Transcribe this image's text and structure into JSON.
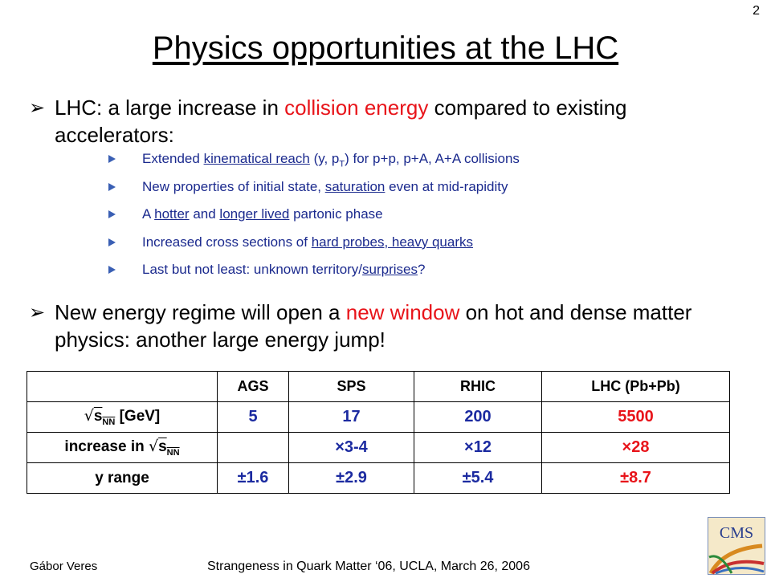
{
  "slide_number": "2",
  "title": "Physics opportunities at the LHC",
  "bullet1": {
    "pre": "LHC: a large increase in ",
    "highlight": "collision energy",
    "post": " compared to existing accelerators:"
  },
  "subbullets": [
    {
      "pre": "Extended ",
      "link": "kinematical reach",
      "post": " (y, p",
      "sub": "T",
      "post2": ") for p+p, p+A, A+A collisions"
    },
    {
      "pre": "New properties of initial state, ",
      "link": "saturation",
      "post": " even at mid-rapidity"
    },
    {
      "pre": "A ",
      "link": "hotter",
      "mid": " and ",
      "link2": "longer lived",
      "post": " partonic phase"
    },
    {
      "pre": "Increased cross sections of ",
      "link": "hard probes, heavy quarks",
      "post": ""
    },
    {
      "pre": "Last but not least: unknown territory/",
      "link": "surprises",
      "post": "?"
    }
  ],
  "bullet2": {
    "pre": "New energy regime will open a ",
    "highlight": "new window",
    "post": " on hot and dense matter physics: another large energy jump!"
  },
  "table": {
    "headers": [
      "",
      "AGS",
      "SPS",
      "RHIC",
      "LHC (Pb+Pb)"
    ],
    "row1_label": "s",
    "row1_label_sub": "NN",
    "row1_label_unit": " [GeV]",
    "row1": [
      "5",
      "17",
      "200",
      "5500"
    ],
    "row2_label": "increase in ",
    "row2_label_s": "s",
    "row2_label_sub": "NN",
    "row2": [
      "",
      "×3-4",
      "×12",
      "×28"
    ],
    "row3_label": "y range",
    "row3": [
      "±1.6",
      "±2.9",
      "±5.4",
      "±8.7"
    ]
  },
  "footer": {
    "author": "Gábor Veres",
    "conference": "Strangeness in Quark Matter ‘06, UCLA, March 26, 2006"
  },
  "logo_text": "CMS"
}
